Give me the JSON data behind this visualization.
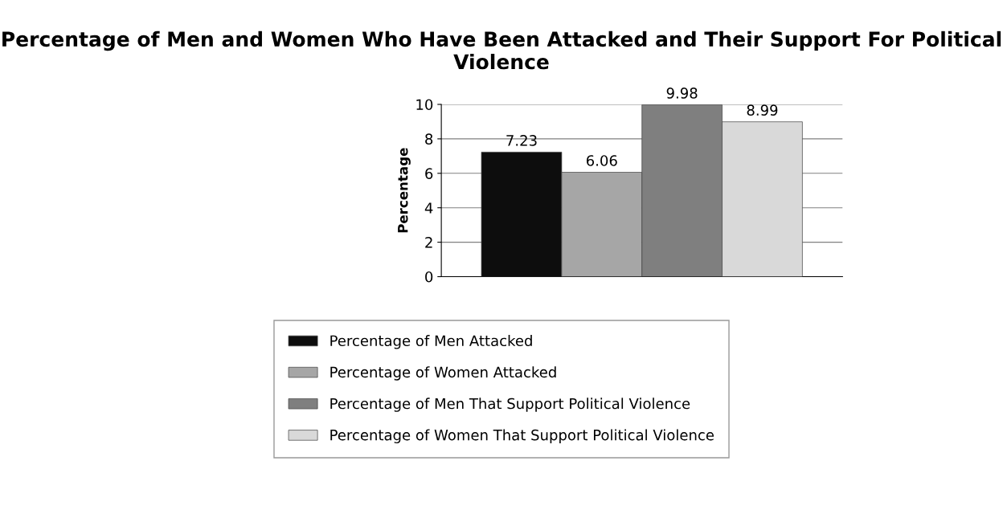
{
  "chart_data": {
    "type": "bar",
    "title": "Percentage of Men and Women Who Have Been Attacked and Their Support For Political Violence",
    "ylabel": "Percentage",
    "categories": [
      null
    ],
    "series": [
      {
        "name": "Percentage of Men Attacked",
        "color": "#0d0d0d",
        "values": [
          7.23
        ]
      },
      {
        "name": "Percentage of Women Attacked",
        "color": "#a6a6a6",
        "values": [
          6.06
        ]
      },
      {
        "name": "Percentage of Men That Support Political Violence",
        "color": "#7f7f7f",
        "values": [
          9.98
        ]
      },
      {
        "name": "Percentage of Women That Support Political Violence",
        "color": "#d9d9d9",
        "values": [
          8.99
        ]
      }
    ],
    "ylim": [
      0,
      10
    ],
    "yticks": [
      0,
      2,
      4,
      6,
      8,
      10
    ],
    "grid": "y",
    "data_labels": true,
    "legend": "bottom"
  }
}
